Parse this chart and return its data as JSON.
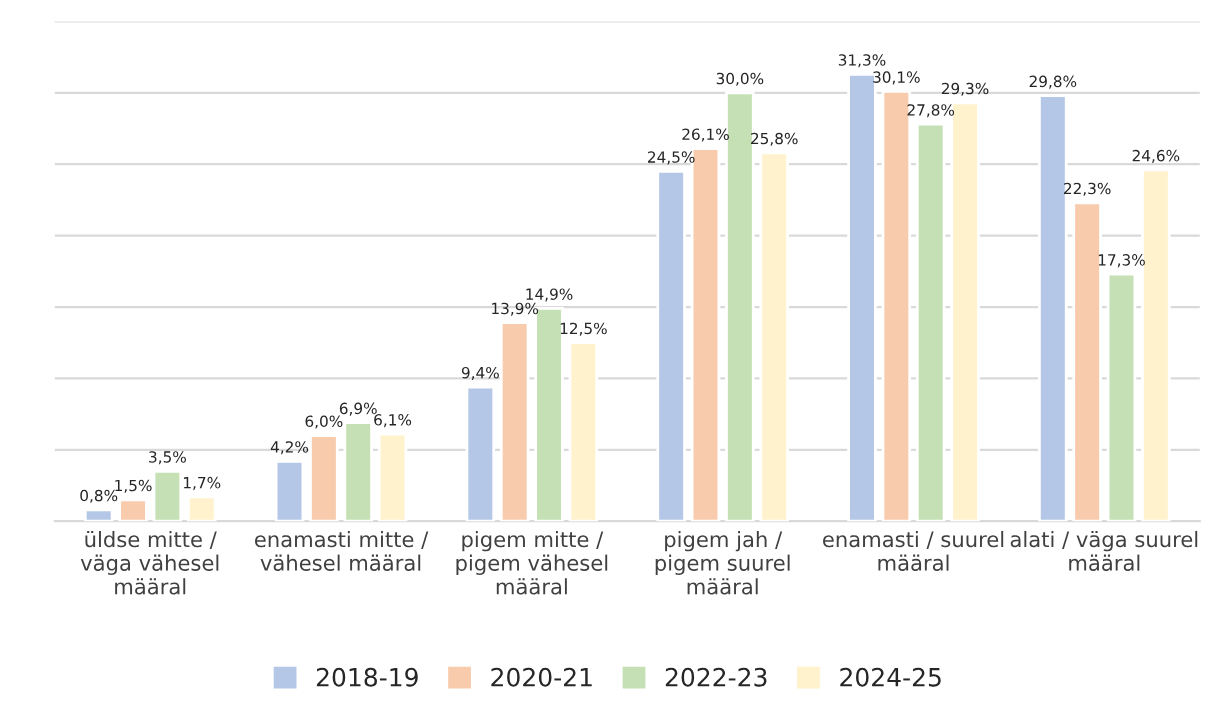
{
  "chart_data": {
    "type": "bar",
    "categories": [
      "üldse mitte /\nväga vähesel\nmääral",
      "enamasti mitte /\nvähesel määral",
      "pigem mitte /\npigem vähesel\nmääral",
      "pigem jah /\npigem suurel\nmääral",
      "enamasti / suurel\nmääral",
      "alati / väga suurel\nmääral"
    ],
    "series": [
      {
        "name": "2018-19",
        "color": "#b4c7e7",
        "values": [
          0.8,
          4.2,
          9.4,
          24.5,
          31.3,
          29.8
        ],
        "value_labels": [
          "0,8%",
          "4,2%",
          "9,4%",
          "24,5%",
          "31,3%",
          "29,8%"
        ]
      },
      {
        "name": "2020-21",
        "color": "#f8cbad",
        "values": [
          1.5,
          6.0,
          13.9,
          26.1,
          30.1,
          22.3
        ],
        "value_labels": [
          "1,5%",
          "6,0%",
          "13,9%",
          "26,1%",
          "30,1%",
          "22,3%"
        ]
      },
      {
        "name": "2022-23",
        "color": "#c5e0b4",
        "values": [
          3.5,
          6.9,
          14.9,
          30.0,
          27.8,
          17.3
        ],
        "value_labels": [
          "3,5%",
          "6,9%",
          "14,9%",
          "30,0%",
          "27,8%",
          "17,3%"
        ]
      },
      {
        "name": "2024-25",
        "color": "#fff2cc",
        "values": [
          1.7,
          6.1,
          12.5,
          25.8,
          29.3,
          24.6
        ],
        "value_labels": [
          "1,7%",
          "6,1%",
          "12,5%",
          "25,8%",
          "29,3%",
          "24,6%"
        ]
      }
    ],
    "ylim": [
      0,
      35
    ],
    "yticks": [
      {
        "value": 0,
        "label": null
      },
      {
        "value": 5,
        "label": null
      },
      {
        "value": 10,
        "label": null
      },
      {
        "value": 15,
        "label": null
      },
      {
        "value": 20,
        "label": null
      },
      {
        "value": 25,
        "label": null
      },
      {
        "value": 30,
        "label": null
      },
      {
        "value": 35,
        "label": null
      }
    ],
    "grid": "y",
    "legend": "bottom",
    "tick_labels": "x"
  }
}
